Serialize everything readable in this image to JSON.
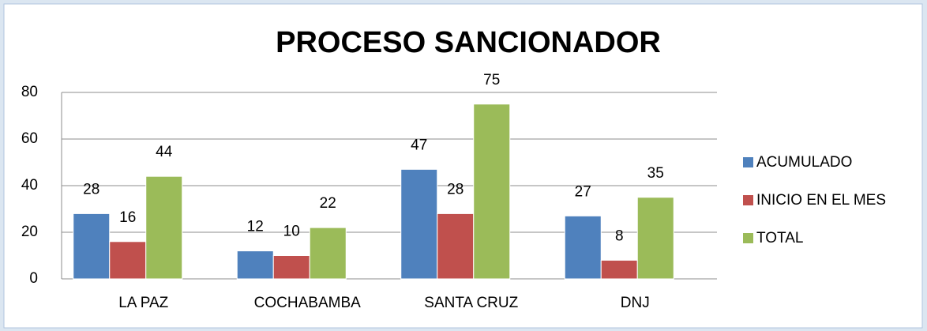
{
  "chart_data": {
    "type": "bar",
    "title": "PROCESO SANCIONADOR",
    "categories": [
      "LA PAZ",
      "COCHABAMBA",
      "SANTA CRUZ",
      "DNJ"
    ],
    "series": [
      {
        "name": "ACUMULADO",
        "color": "#4f81bd",
        "values": [
          28,
          12,
          47,
          27
        ]
      },
      {
        "name": "INICIO EN EL MES",
        "color": "#c0504d",
        "values": [
          16,
          10,
          28,
          8
        ]
      },
      {
        "name": "TOTAL",
        "color": "#9bbb59",
        "values": [
          44,
          22,
          75,
          35
        ]
      }
    ],
    "ylim": [
      0,
      80
    ],
    "yticks": [
      0,
      20,
      40,
      60,
      80
    ],
    "grid": true,
    "legend": "right"
  }
}
